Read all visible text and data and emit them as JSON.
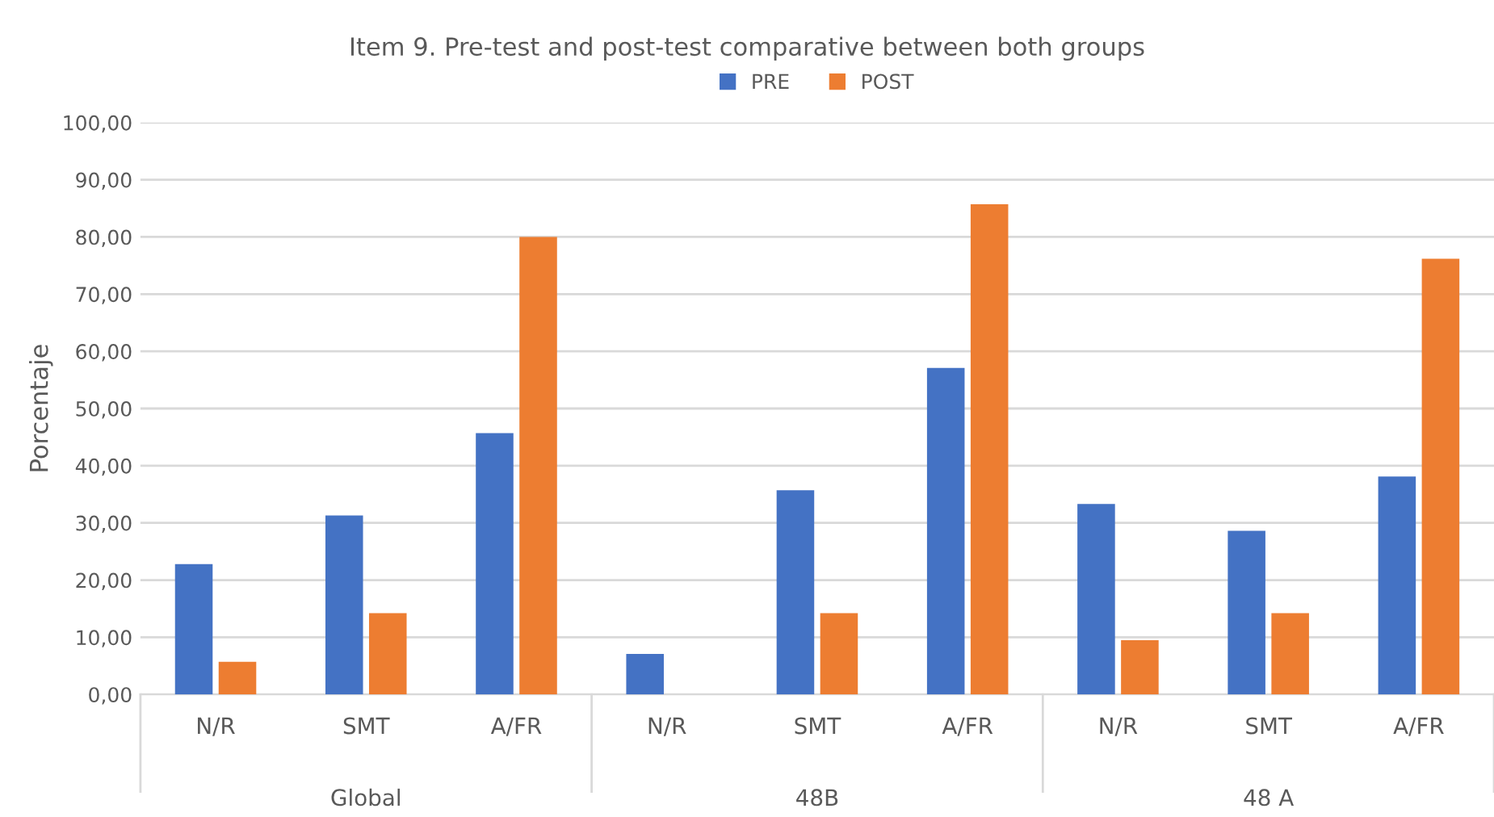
{
  "chart_data": {
    "type": "bar",
    "title": "Item 9. Pre-test and post-test comparative between both groups",
    "ylabel": "Porcentaje",
    "categories": [
      "N/R",
      "SMT",
      "A/FR",
      "N/R",
      "SMT",
      "A/FR",
      "N/R",
      "SMT",
      "A/FR"
    ],
    "series": [
      {
        "name": "PRE",
        "color": "#4472c4",
        "values": [
          22.8,
          31.3,
          45.7,
          7.1,
          35.7,
          57.1,
          33.3,
          28.6,
          38.1
        ]
      },
      {
        "name": "POST",
        "color": "#ed7d31",
        "values": [
          5.7,
          14.2,
          80.0,
          0,
          14.2,
          85.7,
          9.5,
          14.2,
          76.2
        ]
      }
    ],
    "annotations": [
      "Global",
      "48B",
      "48 A"
    ],
    "ylim": [
      0,
      100
    ],
    "yticks": [
      {
        "value": 0,
        "label": "0,00"
      },
      {
        "value": 10,
        "label": "10,00"
      },
      {
        "value": 20,
        "label": "20,00"
      },
      {
        "value": 30,
        "label": "30,00"
      },
      {
        "value": 40,
        "label": "40,00"
      },
      {
        "value": 50,
        "label": "50,00"
      },
      {
        "value": 60,
        "label": "60,00"
      },
      {
        "value": 70,
        "label": "70,00"
      },
      {
        "value": 80,
        "label": "80,00"
      },
      {
        "value": 90,
        "label": "90,00"
      },
      {
        "value": 100,
        "label": "100,00"
      }
    ],
    "grid": "y",
    "legend": "top"
  }
}
